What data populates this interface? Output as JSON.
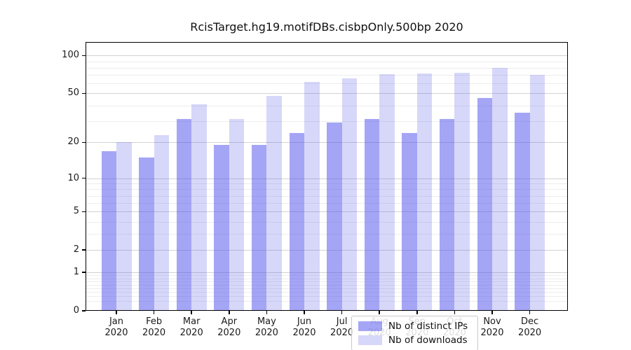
{
  "chart_data": {
    "type": "bar",
    "title": "RcisTarget.hg19.motifDBs.cisbpOnly.500bp 2020",
    "categories": [
      "Jan",
      "Feb",
      "Mar",
      "Apr",
      "May",
      "Jun",
      "Jul",
      "Aug",
      "Sep",
      "Oct",
      "Nov",
      "Dec"
    ],
    "x_year_label": "2020",
    "series": [
      {
        "name": "Nb of distinct IPs",
        "color": "rgba(82,82,238,0.52)",
        "color_hex_on_white": "#a5a5f6",
        "values": [
          17,
          15,
          31,
          19,
          19,
          24,
          29,
          31,
          24,
          31,
          46,
          35
        ]
      },
      {
        "name": "Nb of downloads",
        "color": "rgba(100,100,230,0.26)",
        "color_hex_on_white": "#d7d7f8",
        "values": [
          20,
          23,
          41,
          31,
          48,
          62,
          66,
          71,
          72,
          73,
          80,
          70
        ]
      }
    ],
    "yscale": "log1p",
    "ylim": [
      0,
      128
    ],
    "yticks": [
      0,
      1,
      2,
      5,
      10,
      20,
      50,
      100
    ],
    "minor_yticks": [
      0.2,
      0.3,
      0.4,
      0.5,
      0.6,
      0.7,
      0.8,
      0.9,
      3,
      4,
      6,
      7,
      8,
      9,
      30,
      40,
      60,
      70,
      80,
      90
    ],
    "xlabel": "",
    "ylabel": "",
    "grid": true,
    "legend_position": "lower center",
    "axis_color": "#000000",
    "major_grid_color": "#d2d2d2",
    "minor_grid_color": "#ededed"
  }
}
